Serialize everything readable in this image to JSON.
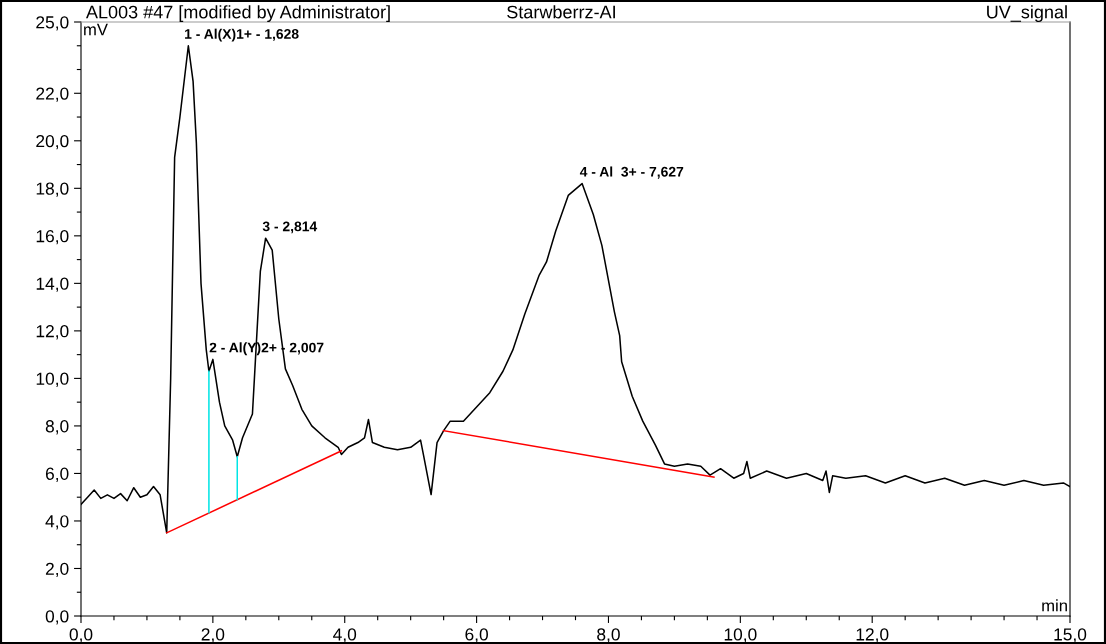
{
  "chart_data": {
    "type": "line",
    "title": "AL003 #47 [modified by Administrator]",
    "subtitle": "Starwberrz-AI",
    "xlabel": "min",
    "ylabel": "mV",
    "annotations": [
      "UV_signal",
      {
        "text": "1 - Al(X)1+ - 1,628",
        "x": 1.628,
        "y": 24.0
      },
      {
        "text": "2 - Al(Y)2+ - 2,007",
        "x": 2.007,
        "y": 10.8
      },
      {
        "text": "3 - 2,814",
        "x": 2.814,
        "y": 15.9
      },
      {
        "text": "4 - Al  3+ - 7,627",
        "x": 7.627,
        "y": 18.2
      }
    ],
    "series": [
      {
        "color": "#000000",
        "x": [
          0,
          0.1,
          0.2,
          0.3,
          0.4,
          0.5,
          0.6,
          0.7,
          0.8,
          0.9,
          1.0,
          1.1,
          1.2,
          1.3,
          1.36,
          1.42,
          1.5,
          1.628,
          1.7,
          1.75,
          1.82,
          1.9,
          1.94,
          2.0,
          2.1,
          2.18,
          2.3,
          2.37,
          2.45,
          2.6,
          2.65,
          2.72,
          2.8,
          2.9,
          3.0,
          3.1,
          3.21,
          3.35,
          3.5,
          3.7,
          3.9,
          3.95,
          4.05,
          4.2,
          4.3,
          4.36,
          4.42,
          4.6,
          4.8,
          5.0,
          5.15,
          5.2,
          5.31,
          5.4,
          5.5,
          5.6,
          5.8,
          6.0,
          6.2,
          6.4,
          6.55,
          6.73,
          6.95,
          7.06,
          7.2,
          7.39,
          7.6,
          7.77,
          7.9,
          8.09,
          8.17,
          8.2,
          8.36,
          8.52,
          8.71,
          8.85,
          9.0,
          9.2,
          9.4,
          9.54,
          9.7,
          9.9,
          10.05,
          10.1,
          10.15,
          10.4,
          10.7,
          11.0,
          11.25,
          11.3,
          11.35,
          11.4,
          11.6,
          11.9,
          12.2,
          12.5,
          12.8,
          13.1,
          13.4,
          13.7,
          14.0,
          14.3,
          14.6,
          14.9,
          15.0
        ],
        "values": [
          4.7,
          5.0,
          5.3,
          4.95,
          5.1,
          4.95,
          5.15,
          4.85,
          5.4,
          5.0,
          5.1,
          5.45,
          5.1,
          3.5,
          10.0,
          19.3,
          21.0,
          24.0,
          22.5,
          19.9,
          14.0,
          11.2,
          10.3,
          10.8,
          9.0,
          8.0,
          7.4,
          6.7,
          7.5,
          8.5,
          11.0,
          14.5,
          15.9,
          15.4,
          12.5,
          10.4,
          9.7,
          8.7,
          8.0,
          7.5,
          7.1,
          6.8,
          7.1,
          7.3,
          7.5,
          8.27,
          7.3,
          7.1,
          7.0,
          7.1,
          7.4,
          6.7,
          5.11,
          7.3,
          7.8,
          8.2,
          8.2,
          8.8,
          9.4,
          10.3,
          11.2,
          12.7,
          14.35,
          14.9,
          16.2,
          17.7,
          18.2,
          16.9,
          15.6,
          12.8,
          11.8,
          10.7,
          9.25,
          8.2,
          7.2,
          6.4,
          6.3,
          6.4,
          6.3,
          5.93,
          6.2,
          5.8,
          6.0,
          6.5,
          5.8,
          6.1,
          5.8,
          6.0,
          5.7,
          6.1,
          5.2,
          5.9,
          5.8,
          5.9,
          5.6,
          5.9,
          5.6,
          5.8,
          5.5,
          5.7,
          5.5,
          5.7,
          5.5,
          5.6,
          5.45
        ]
      },
      {
        "color": "#ff0000",
        "x": [
          1.3,
          3.95
        ],
        "values": [
          3.5,
          6.95
        ]
      },
      {
        "color": "#ff0000",
        "x": [
          5.5,
          9.6
        ],
        "values": [
          7.8,
          5.85
        ]
      },
      {
        "color": "#00e5e5",
        "x": [
          1.94,
          1.94
        ],
        "values": [
          10.3,
          4.35
        ]
      },
      {
        "color": "#00e5e5",
        "x": [
          2.37,
          2.37
        ],
        "values": [
          6.7,
          4.9
        ]
      }
    ],
    "xlim": [
      0,
      15
    ],
    "ylim": [
      0,
      25
    ],
    "xticks": [
      {
        "value": 0,
        "label": "0,0"
      },
      {
        "value": 0.5,
        "label": null
      },
      {
        "value": 1,
        "label": null
      },
      {
        "value": 1.5,
        "label": null
      },
      {
        "value": 2,
        "label": "2,0"
      },
      {
        "value": 2.5,
        "label": null
      },
      {
        "value": 3,
        "label": null
      },
      {
        "value": 3.5,
        "label": null
      },
      {
        "value": 4,
        "label": "4,0"
      },
      {
        "value": 4.5,
        "label": null
      },
      {
        "value": 5,
        "label": null
      },
      {
        "value": 5.5,
        "label": null
      },
      {
        "value": 6,
        "label": "6,0"
      },
      {
        "value": 6.5,
        "label": null
      },
      {
        "value": 7,
        "label": null
      },
      {
        "value": 7.5,
        "label": null
      },
      {
        "value": 8,
        "label": "8,0"
      },
      {
        "value": 8.5,
        "label": null
      },
      {
        "value": 9,
        "label": null
      },
      {
        "value": 9.5,
        "label": null
      },
      {
        "value": 10,
        "label": "10,0"
      },
      {
        "value": 10.5,
        "label": null
      },
      {
        "value": 11,
        "label": null
      },
      {
        "value": 11.5,
        "label": null
      },
      {
        "value": 12,
        "label": "12,0"
      },
      {
        "value": 12.5,
        "label": null
      },
      {
        "value": 13,
        "label": null
      },
      {
        "value": 13.5,
        "label": null
      },
      {
        "value": 14,
        "label": null
      },
      {
        "value": 14.5,
        "label": null
      },
      {
        "value": 15,
        "label": "15,0"
      }
    ],
    "yticks": [
      {
        "value": 0,
        "label": "0,0"
      },
      {
        "value": 1,
        "label": null
      },
      {
        "value": 2,
        "label": "2,0"
      },
      {
        "value": 3,
        "label": null
      },
      {
        "value": 4,
        "label": "4,0"
      },
      {
        "value": 5,
        "label": null
      },
      {
        "value": 6,
        "label": "6,0"
      },
      {
        "value": 7,
        "label": null
      },
      {
        "value": 8,
        "label": "8,0"
      },
      {
        "value": 9,
        "label": null
      },
      {
        "value": 10,
        "label": "10,0"
      },
      {
        "value": 11,
        "label": null
      },
      {
        "value": 12,
        "label": "12,0"
      },
      {
        "value": 13,
        "label": null
      },
      {
        "value": 14,
        "label": "14,0"
      },
      {
        "value": 15,
        "label": null
      },
      {
        "value": 16,
        "label": "16,0"
      },
      {
        "value": 17,
        "label": null
      },
      {
        "value": 18,
        "label": "18,0"
      },
      {
        "value": 19,
        "label": null
      },
      {
        "value": 20,
        "label": "20,0"
      },
      {
        "value": 21,
        "label": null
      },
      {
        "value": 22,
        "label": "22,0"
      },
      {
        "value": 23,
        "label": null
      },
      {
        "value": 24,
        "label": null
      },
      {
        "value": 25,
        "label": "25,0"
      }
    ],
    "grid": false,
    "legend": false
  }
}
